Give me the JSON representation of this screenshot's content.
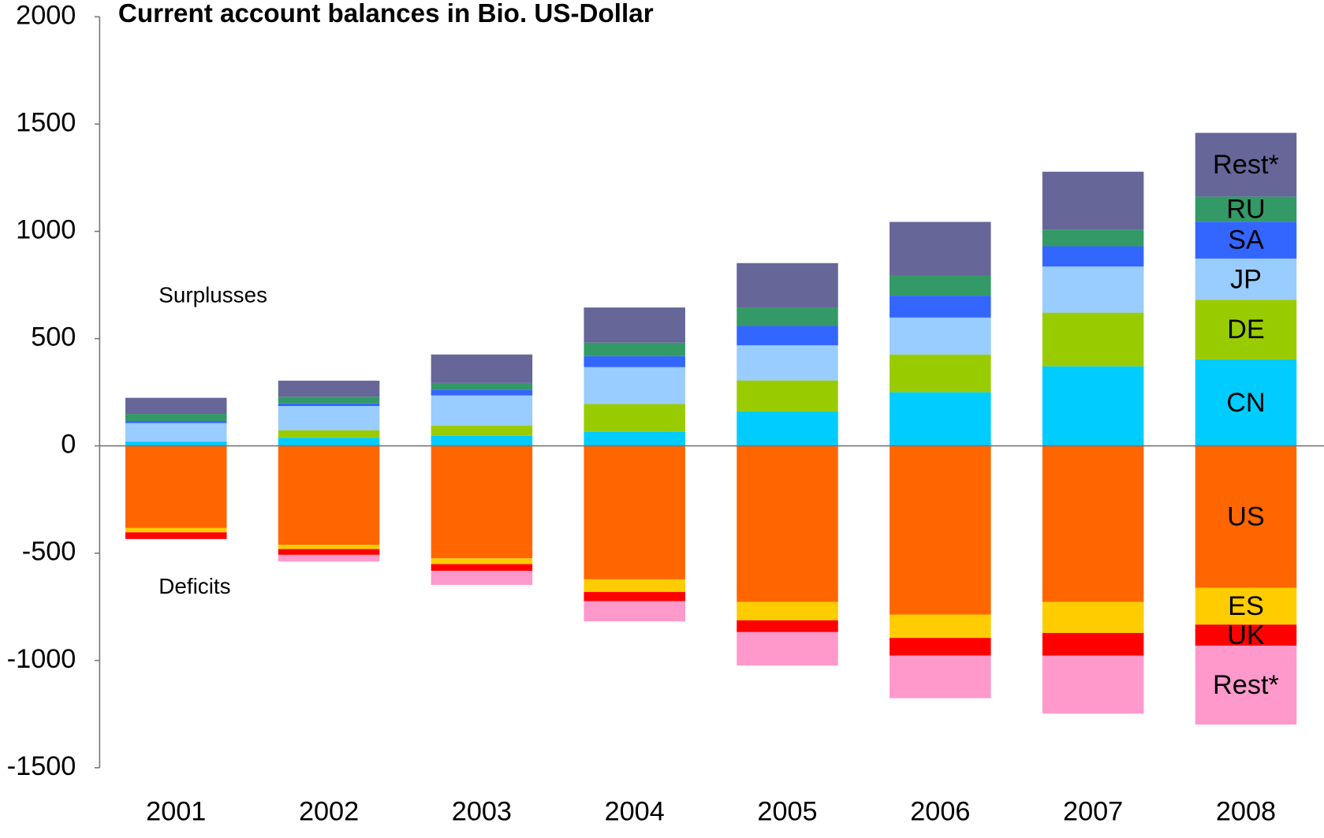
{
  "chart_data": {
    "type": "stacked_bar",
    "title": "Current account balances in Bio. US-Dollar",
    "annotations": [
      "Surplusses",
      "Deficits"
    ],
    "categories": [
      "2001",
      "2002",
      "2003",
      "2004",
      "2005",
      "2006",
      "2007",
      "2008"
    ],
    "ylim": [
      -1500,
      2000
    ],
    "yticks": [
      -1500,
      -1000,
      -500,
      0,
      500,
      1000,
      1500,
      2000
    ],
    "series": [
      {
        "name": "CN",
        "color": "#00ccff",
        "values": [
          20,
          38,
          47,
          66,
          160,
          250,
          371,
          403
        ]
      },
      {
        "name": "DE",
        "color": "#99cc00",
        "values": [
          0,
          35,
          47,
          129,
          145,
          176,
          250,
          278
        ]
      },
      {
        "name": "JP",
        "color": "#99ccff",
        "values": [
          86,
          113,
          141,
          172,
          164,
          172,
          215,
          192
        ]
      },
      {
        "name": "SA",
        "color": "#3366ff",
        "values": [
          10,
          12,
          27,
          51,
          90,
          102,
          94,
          172
        ]
      },
      {
        "name": "RU",
        "color": "#339966",
        "values": [
          33,
          31,
          31,
          63,
          86,
          94,
          78,
          117
        ]
      },
      {
        "name": "Rest*",
        "color": "#666699",
        "values": [
          75,
          75,
          133,
          164,
          207,
          250,
          270,
          297
        ]
      },
      {
        "name": "US",
        "color": "#ff6600",
        "values": [
          -383,
          -461,
          -524,
          -622,
          -727,
          -786,
          -727,
          -661
        ]
      },
      {
        "name": "ES",
        "color": "#ffcc00",
        "values": [
          -20,
          -20,
          -27,
          -59,
          -86,
          -109,
          -145,
          -172
        ]
      },
      {
        "name": "UK",
        "color": "#ff0000",
        "values": [
          -31,
          -27,
          -31,
          -43,
          -55,
          -82,
          -106,
          -98
        ]
      },
      {
        "name": "Rest*",
        "color": "#ff99cc",
        "values": [
          0,
          -31,
          -66,
          -94,
          -156,
          -199,
          -270,
          -368
        ]
      }
    ]
  }
}
